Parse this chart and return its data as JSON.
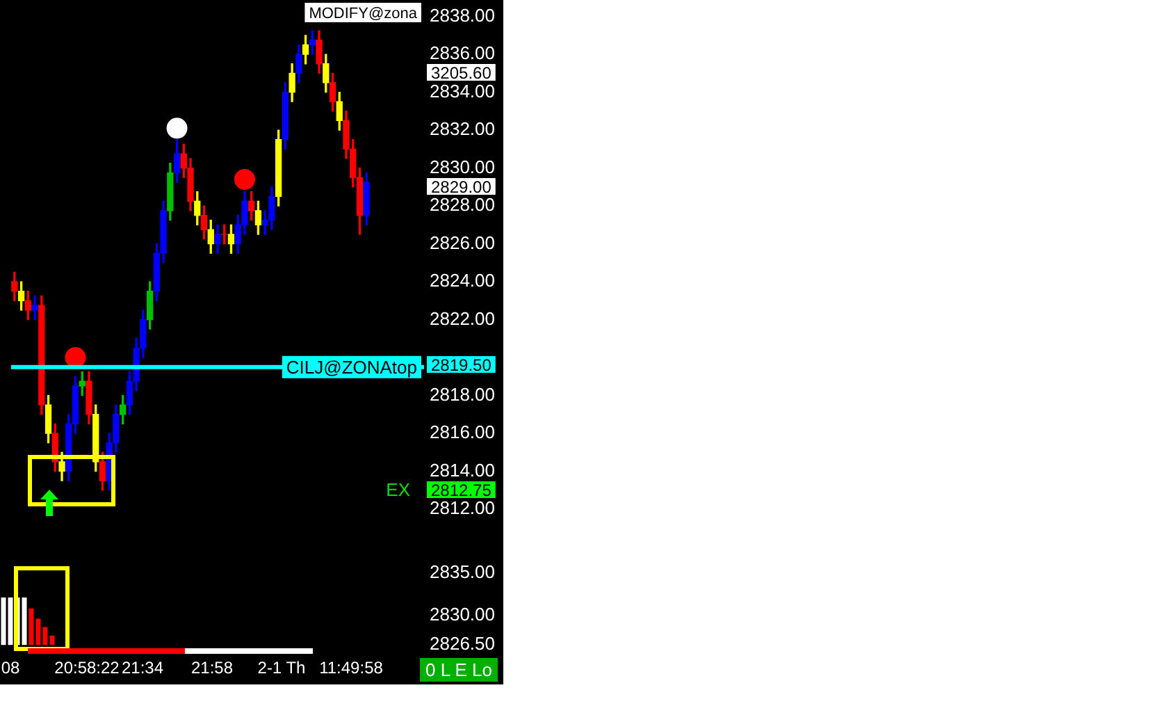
{
  "chart_data": [
    {
      "type": "candlestick",
      "categories": [
        null,
        null,
        null,
        null,
        null,
        null,
        null,
        null,
        null,
        null,
        null,
        null,
        null,
        null,
        null,
        null,
        null,
        null,
        null,
        null,
        null,
        null,
        null,
        null,
        null,
        null,
        null,
        null,
        null,
        null,
        null,
        null,
        null,
        null,
        null,
        null,
        null,
        null,
        null,
        null,
        null,
        null,
        null,
        null,
        null,
        null,
        null,
        null,
        null,
        null,
        null,
        null,
        null,
        null,
        null,
        null,
        null,
        null,
        null,
        null,
        null
      ],
      "ohlc": [
        [
          2824,
          2824.5,
          2823,
          2823.5
        ],
        [
          2823.5,
          2824,
          2822.5,
          2823
        ],
        [
          2823,
          2823.5,
          2822,
          2822.5
        ],
        [
          2822.5,
          2823.25,
          2822,
          2822.75
        ],
        [
          2822.75,
          2823.25,
          2817,
          2817.5
        ],
        [
          2817.5,
          2818,
          2815.5,
          2816
        ],
        [
          2816,
          2816.5,
          2814,
          2814.5
        ],
        [
          2814.5,
          2815,
          2813.5,
          2814
        ],
        [
          2814,
          2817,
          2813.5,
          2816.5
        ],
        [
          2816.5,
          2819,
          2816,
          2818.5
        ],
        [
          2818.5,
          2819.25,
          2818,
          2818.75
        ],
        [
          2818.75,
          2819.25,
          2816.5,
          2817
        ],
        [
          2817,
          2817.5,
          2814,
          2814.5
        ],
        [
          2814.5,
          2815,
          2813,
          2813.5
        ],
        [
          2813.5,
          2816,
          2813,
          2815.5
        ],
        [
          2815.5,
          2817.5,
          2815,
          2817
        ],
        [
          2817,
          2818,
          2816.5,
          2817.5
        ],
        [
          2817.5,
          2819.25,
          2817,
          2818.75
        ],
        [
          2818.75,
          2821,
          2818.25,
          2820.5
        ],
        [
          2820.5,
          2822.5,
          2820,
          2822
        ],
        [
          2822,
          2824,
          2821.5,
          2823.5
        ],
        [
          2823.5,
          2826,
          2823,
          2825.5
        ],
        [
          2825.5,
          2828.25,
          2825,
          2827.75
        ],
        [
          2827.75,
          2830.25,
          2827.25,
          2829.75
        ],
        [
          2829.75,
          2831.5,
          2829.25,
          2830.75
        ],
        [
          2830.75,
          2831.25,
          2829.5,
          2830
        ],
        [
          2830,
          2830.5,
          2827.75,
          2828.25
        ],
        [
          2828.25,
          2828.75,
          2827,
          2827.5
        ],
        [
          2827.5,
          2828,
          2826.25,
          2826.75
        ],
        [
          2826.75,
          2827.25,
          2825.5,
          2826
        ],
        [
          2826,
          2827,
          2825.5,
          2826.5
        ],
        [
          2826.5,
          2827,
          2826,
          2826.5
        ],
        [
          2826.5,
          2827,
          2825.5,
          2826
        ],
        [
          2826,
          2827.5,
          2825.5,
          2827
        ],
        [
          2827,
          2828.75,
          2826.5,
          2828.25
        ],
        [
          2828.25,
          2828.75,
          2827.25,
          2827.75
        ],
        [
          2827.75,
          2828.25,
          2826.5,
          2827
        ],
        [
          2827,
          2827.75,
          2826.5,
          2827.25
        ],
        [
          2827.25,
          2829,
          2826.75,
          2828.5
        ],
        [
          2828.5,
          2832,
          2828,
          2831.5
        ],
        [
          2831.5,
          2834.5,
          2831,
          2834
        ],
        [
          2834,
          2835.5,
          2833.5,
          2835
        ],
        [
          2835,
          2836.5,
          2834.5,
          2836
        ],
        [
          2836,
          2837,
          2835.5,
          2836.5
        ],
        [
          2836.5,
          2837.25,
          2836,
          2836.75
        ],
        [
          2836.75,
          2837.25,
          2835,
          2835.5
        ],
        [
          2835.5,
          2836,
          2834,
          2834.5
        ],
        [
          2834.5,
          2835,
          2833,
          2833.5
        ],
        [
          2833.5,
          2834,
          2832,
          2832.5
        ],
        [
          2832.5,
          2833,
          2830.5,
          2831
        ],
        [
          2831,
          2831.5,
          2829,
          2829.5
        ],
        [
          2829.5,
          2830,
          2826.5,
          2827.5
        ],
        [
          2827.5,
          2829.75,
          2827,
          2829.25
        ],
        null,
        null,
        null,
        null,
        null,
        null,
        null,
        null
      ],
      "colors": [
        "#ff0000",
        "#ffff00",
        "#ff0000",
        "#0000ff",
        "#ff0000",
        "#ffff00",
        "#ff0000",
        "#ffff00",
        "#0000ff",
        "#0000ff",
        "#00c000",
        "#ff0000",
        "#ffff00",
        "#ff0000",
        "#0000ff",
        "#0000ff",
        "#00c000",
        "#0000ff",
        "#0000ff",
        "#0000ff",
        "#00c000",
        "#0000ff",
        "#0000ff",
        "#00c000",
        "#0000ff",
        "#ff0000",
        "#ff0000",
        "#ffff00",
        "#ff0000",
        "#ffff00",
        "#0000ff",
        "#ff0000",
        "#ffff00",
        "#0000ff",
        "#0000ff",
        "#ff0000",
        "#ffff00",
        "#0000ff",
        "#0000ff",
        "#ffff00",
        "#0000ff",
        "#ffff00",
        "#0000ff",
        "#ffff00",
        "#0000ff",
        "#ff0000",
        "#ffff00",
        "#ff0000",
        "#ffff00",
        "#ff0000",
        "#ff0000",
        "#ff0000",
        "#0000ff",
        null,
        null,
        null,
        null,
        null,
        null,
        null,
        null
      ],
      "series": [
        {
          "type": "scatter",
          "color": "#ff0000",
          "values": [
            null,
            null,
            null,
            null,
            null,
            null,
            null,
            null,
            null,
            2820,
            null,
            null,
            null,
            null,
            null,
            null,
            null,
            null,
            null,
            null,
            null,
            null,
            null,
            null,
            null,
            null,
            null,
            null,
            null,
            null,
            null,
            null,
            null,
            null,
            2829.4,
            null,
            null,
            null,
            null,
            null,
            null,
            null,
            null,
            null,
            null,
            null,
            null,
            null,
            null,
            null,
            null,
            null,
            null,
            null,
            null,
            null,
            null,
            null,
            null,
            null,
            null
          ]
        },
        {
          "type": "scatter",
          "color": "#ffffff",
          "values": [
            null,
            null,
            null,
            null,
            null,
            null,
            null,
            null,
            null,
            null,
            null,
            null,
            null,
            null,
            null,
            null,
            null,
            null,
            null,
            null,
            null,
            null,
            null,
            null,
            2832.1,
            null,
            null,
            null,
            null,
            null,
            null,
            null,
            null,
            null,
            null,
            null,
            null,
            null,
            null,
            null,
            null,
            null,
            null,
            null,
            null,
            null,
            null,
            null,
            null,
            null,
            null,
            null,
            null,
            null,
            null,
            null,
            null,
            null,
            null,
            null,
            null
          ]
        }
      ],
      "marker": "circle",
      "ylim": [
        2812,
        2838
      ],
      "yticks": [
        {
          "value": 2812,
          "label": "2812.00"
        },
        {
          "value": 2814,
          "label": "2814.00"
        },
        {
          "value": 2816,
          "label": "2816.00"
        },
        {
          "value": 2818,
          "label": "2818.00"
        },
        {
          "value": 2822,
          "label": "2822.00"
        },
        {
          "value": 2824,
          "label": "2824.00"
        },
        {
          "value": 2826,
          "label": "2826.00"
        },
        {
          "value": 2828,
          "label": "2828.00"
        },
        {
          "value": 2830,
          "label": "2830.00"
        },
        {
          "value": 2832,
          "label": "2832.00"
        },
        {
          "value": 2834,
          "label": "2834.00"
        },
        {
          "value": 2836,
          "label": "2836.00"
        },
        {
          "value": 2838,
          "label": "2838.00"
        }
      ],
      "ref_lines": [
        {
          "axis": "y",
          "value": 2819.5,
          "label": "CILJ@ZONAtop",
          "color": "#00ffff"
        }
      ],
      "annotations": [
        "MODIFY@zona",
        "3205.60",
        "2829.00",
        "EX",
        "2812.75",
        "2819.50"
      ],
      "tick_labels": "y",
      "grid": false,
      "legend": false
    },
    {
      "type": "bar",
      "categories": [
        null,
        "08",
        null,
        null,
        null,
        null,
        null,
        null,
        null,
        null,
        null,
        null,
        "20:58:22",
        null,
        null,
        null,
        null,
        null,
        null,
        null,
        "21:34",
        null,
        null,
        null,
        null,
        null,
        null,
        null,
        null,
        null,
        "21:58",
        null,
        null,
        null,
        null,
        null,
        null,
        null,
        null,
        null,
        "2-1 Th",
        null,
        null,
        null,
        null,
        null,
        null,
        null,
        null,
        null,
        "11:49:58",
        null,
        null,
        null,
        null,
        null,
        null,
        null,
        null,
        null,
        null
      ],
      "values": [
        2832.1,
        2832.1,
        2832.1,
        2832.1,
        2830.8,
        2829.6,
        2828.6,
        2827.6,
        null,
        null,
        null,
        null,
        null,
        null,
        null,
        null,
        null,
        null,
        null,
        null,
        null,
        null,
        null,
        null,
        null,
        null,
        null,
        null,
        null,
        null,
        null,
        null,
        null,
        null,
        null,
        null,
        null,
        null,
        null,
        null,
        null,
        null,
        null,
        null,
        null,
        null,
        null,
        null,
        null,
        null,
        null,
        null,
        null,
        null,
        null,
        null,
        null,
        null,
        null,
        null,
        null
      ],
      "colors": [
        "#ffffff",
        "#ffffff",
        "#ffffff",
        "#ffffff",
        "#ff0000",
        "#ff0000",
        "#ff0000",
        "#ff0000",
        null,
        null,
        null,
        null,
        null,
        null,
        null,
        null,
        null,
        null,
        null,
        null,
        null,
        null,
        null,
        null,
        null,
        null,
        null,
        null,
        null,
        null,
        null,
        null,
        null,
        null,
        null,
        null,
        null,
        null,
        null,
        null,
        null,
        null,
        null,
        null,
        null,
        null,
        null,
        null,
        null,
        null,
        null,
        null,
        null,
        null,
        null,
        null,
        null,
        null,
        null,
        null,
        null
      ],
      "ylim": [
        2826.5,
        2835
      ],
      "yticks": [
        {
          "value": 2826.5,
          "label": "2826.50"
        },
        {
          "value": 2830,
          "label": "2830.00"
        },
        {
          "value": 2835,
          "label": "2835.00"
        }
      ],
      "annotations": [
        "0 L E Lo"
      ],
      "grid": false,
      "legend": false
    }
  ]
}
